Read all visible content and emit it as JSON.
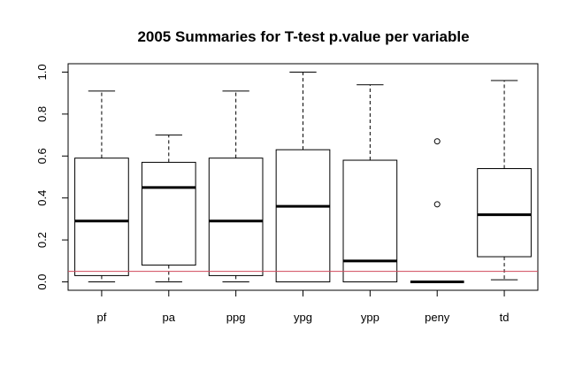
{
  "chart_data": {
    "type": "boxplot",
    "title": "2005  Summaries for T-test p.value per variable",
    "xlabel": "",
    "ylabel": "",
    "ylim": [
      -0.04,
      1.04
    ],
    "yticks": [
      "0.0",
      "0.2",
      "0.4",
      "0.6",
      "0.8",
      "1.0"
    ],
    "ytick_values": [
      0.0,
      0.2,
      0.4,
      0.6,
      0.8,
      1.0
    ],
    "grid": false,
    "reference_line": {
      "y": 0.05,
      "color": "#d1495b"
    },
    "categories": [
      "pf",
      "pa",
      "ppg",
      "ypg",
      "ypp",
      "peny",
      "td"
    ],
    "boxes": [
      {
        "label": "pf",
        "whisker_low": 0.0,
        "q1": 0.03,
        "median": 0.29,
        "q3": 0.59,
        "whisker_high": 0.91,
        "outliers": []
      },
      {
        "label": "pa",
        "whisker_low": 0.0,
        "q1": 0.08,
        "median": 0.45,
        "q3": 0.57,
        "whisker_high": 0.7,
        "outliers": []
      },
      {
        "label": "ppg",
        "whisker_low": 0.0,
        "q1": 0.03,
        "median": 0.29,
        "q3": 0.59,
        "whisker_high": 0.91,
        "outliers": []
      },
      {
        "label": "ypg",
        "whisker_low": 0.0,
        "q1": 0.0,
        "median": 0.36,
        "q3": 0.63,
        "whisker_high": 1.0,
        "outliers": []
      },
      {
        "label": "ypp",
        "whisker_low": 0.0,
        "q1": 0.0,
        "median": 0.1,
        "q3": 0.58,
        "whisker_high": 0.94,
        "outliers": []
      },
      {
        "label": "peny",
        "whisker_low": 0.0,
        "q1": 0.0,
        "median": 0.0,
        "q3": 0.0,
        "whisker_high": 0.0,
        "outliers": [
          0.37,
          0.67
        ]
      },
      {
        "label": "td",
        "whisker_low": 0.01,
        "q1": 0.12,
        "median": 0.32,
        "q3": 0.54,
        "whisker_high": 0.96,
        "outliers": []
      }
    ]
  }
}
